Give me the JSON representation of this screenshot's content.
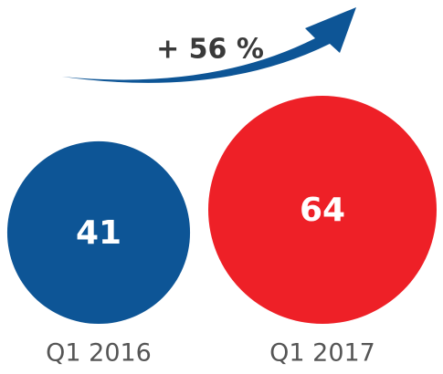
{
  "chart_data": {
    "type": "bubble",
    "annotation": "+ 56 %",
    "categories": [
      "Q1 2016",
      "Q1 2017"
    ],
    "values": [
      41,
      64
    ],
    "colors": [
      "#0d5596",
      "#ee2027"
    ]
  }
}
